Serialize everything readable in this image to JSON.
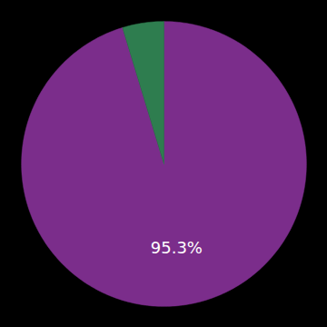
{
  "chart_data": {
    "type": "pie",
    "values": [
      95.3,
      4.7
    ],
    "colors": [
      "#7B2D8B",
      "#2E7D4F"
    ],
    "value_labels": [
      "95.3%",
      null
    ]
  }
}
